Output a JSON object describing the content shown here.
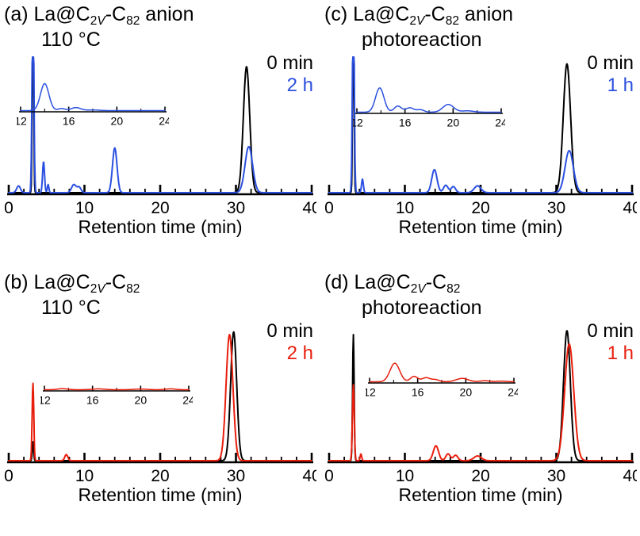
{
  "figure": {
    "xlabel": "Retention time (min)",
    "background": "#ffffff",
    "colors": {
      "black": "#000000",
      "blue": "#2b50e0",
      "red": "#e81e0c"
    }
  },
  "chart_data": [
    {
      "type": "line",
      "panel": "a",
      "title_segments": [
        {
          "t": "(a) "
        },
        {
          "t": "La@C"
        },
        {
          "t": "2",
          "sub": true
        },
        {
          "t": "V",
          "sub": true,
          "ital": true
        },
        {
          "t": "-C"
        },
        {
          "t": "82",
          "sub": true
        },
        {
          "t": " anion"
        }
      ],
      "subtitle": "110 °C",
      "xlabel": "Retention time (min)",
      "xlim": [
        0,
        40
      ],
      "x_major_ticks": [
        0,
        10,
        20,
        30,
        40
      ],
      "x_minor_step": 2,
      "legend": [
        {
          "label": "0 min",
          "color": "#000000"
        },
        {
          "label": "2 h",
          "color": "#2b50e0"
        }
      ],
      "series": [
        {
          "name": "0 min",
          "color": "#000000",
          "peaks": [
            {
              "center": 3.2,
              "width": 0.09,
              "height": 1.5
            },
            {
              "center": 31.4,
              "width": 0.42,
              "height": 0.93
            }
          ]
        },
        {
          "name": "2 h",
          "color": "#2b50e0",
          "peaks": [
            {
              "center": 1.3,
              "width": 0.25,
              "height": 0.05
            },
            {
              "center": 3.2,
              "width": 0.12,
              "height": 1.5
            },
            {
              "center": 4.6,
              "width": 0.13,
              "height": 0.23
            },
            {
              "center": 5.2,
              "width": 0.1,
              "height": 0.06
            },
            {
              "center": 8.6,
              "width": 0.3,
              "height": 0.06
            },
            {
              "center": 9.3,
              "width": 0.25,
              "height": 0.04
            },
            {
              "center": 14.0,
              "width": 0.3,
              "height": 0.33
            },
            {
              "center": 31.7,
              "width": 0.5,
              "height": 0.34
            }
          ]
        }
      ],
      "inset": {
        "xlim": [
          12,
          24
        ],
        "x_major_ticks": [
          12,
          16,
          20,
          24
        ],
        "x_minor_step": 2,
        "series": [
          {
            "name": "2 h",
            "color": "#2b50e0",
            "peaks": [
              {
                "center": 14.0,
                "width": 0.35,
                "height": 0.8
              },
              {
                "center": 15.4,
                "width": 0.3,
                "height": 0.06
              },
              {
                "center": 16.6,
                "width": 0.4,
                "height": 0.09
              },
              {
                "center": 18.0,
                "width": 0.5,
                "height": 0.02
              }
            ]
          }
        ]
      }
    },
    {
      "type": "line",
      "panel": "b",
      "title_segments": [
        {
          "t": "(b) "
        },
        {
          "t": "La@C"
        },
        {
          "t": "2",
          "sub": true
        },
        {
          "t": "V",
          "sub": true,
          "ital": true
        },
        {
          "t": "-C"
        },
        {
          "t": "82",
          "sub": true
        }
      ],
      "subtitle": "110 °C",
      "xlabel": "Retention time (min)",
      "xlim": [
        0,
        40
      ],
      "x_major_ticks": [
        0,
        10,
        20,
        30,
        40
      ],
      "x_minor_step": 2,
      "legend": [
        {
          "label": "0 min",
          "color": "#000000"
        },
        {
          "label": "2 h",
          "color": "#e81e0c"
        }
      ],
      "series": [
        {
          "name": "0 min",
          "color": "#000000",
          "peaks": [
            {
              "center": 3.2,
              "width": 0.09,
              "height": 0.14
            },
            {
              "center": 29.7,
              "width": 0.4,
              "height": 0.95
            }
          ]
        },
        {
          "name": "2 h",
          "color": "#e81e0c",
          "peaks": [
            {
              "center": 3.2,
              "width": 0.11,
              "height": 0.57
            },
            {
              "center": 7.6,
              "width": 0.2,
              "height": 0.045
            },
            {
              "center": 29.15,
              "width": 0.45,
              "height": 0.93
            }
          ]
        }
      ],
      "inset": {
        "xlim": [
          12,
          24
        ],
        "x_major_ticks": [
          12,
          16,
          20,
          24
        ],
        "x_minor_step": 2,
        "series": [
          {
            "name": "2 h",
            "color": "#e81e0c",
            "peaks": [
              {
                "center": 13.5,
                "width": 0.4,
                "height": 0.03
              },
              {
                "center": 16.5,
                "width": 0.5,
                "height": 0.025
              },
              {
                "center": 20.0,
                "width": 0.5,
                "height": 0.02
              },
              {
                "center": 22.5,
                "width": 0.4,
                "height": 0.025
              }
            ]
          }
        ]
      }
    },
    {
      "type": "line",
      "panel": "c",
      "title_segments": [
        {
          "t": "(c) "
        },
        {
          "t": "La@C"
        },
        {
          "t": "2",
          "sub": true
        },
        {
          "t": "V",
          "sub": true,
          "ital": true
        },
        {
          "t": "-C"
        },
        {
          "t": "82",
          "sub": true
        },
        {
          "t": " anion"
        }
      ],
      "subtitle": "photoreaction",
      "xlabel": "Retention time (min)",
      "xlim": [
        0,
        40
      ],
      "x_major_ticks": [
        0,
        10,
        20,
        30,
        40
      ],
      "x_minor_step": 2,
      "legend": [
        {
          "label": "0 min",
          "color": "#000000"
        },
        {
          "label": "1 h",
          "color": "#2b50e0"
        }
      ],
      "series": [
        {
          "name": "0 min",
          "color": "#000000",
          "peaks": [
            {
              "center": 3.2,
              "width": 0.09,
              "height": 1.5
            },
            {
              "center": 31.4,
              "width": 0.48,
              "height": 0.95
            }
          ]
        },
        {
          "name": "1 h",
          "color": "#2b50e0",
          "peaks": [
            {
              "center": 3.2,
              "width": 0.12,
              "height": 1.5
            },
            {
              "center": 4.4,
              "width": 0.12,
              "height": 0.1
            },
            {
              "center": 13.9,
              "width": 0.35,
              "height": 0.17
            },
            {
              "center": 15.4,
              "width": 0.3,
              "height": 0.055
            },
            {
              "center": 16.4,
              "width": 0.3,
              "height": 0.045
            },
            {
              "center": 19.6,
              "width": 0.45,
              "height": 0.05
            },
            {
              "center": 31.7,
              "width": 0.55,
              "height": 0.31
            }
          ]
        }
      ],
      "inset": {
        "xlim": [
          12,
          24
        ],
        "x_major_ticks": [
          12,
          16,
          20,
          24
        ],
        "x_minor_step": 2,
        "series": [
          {
            "name": "1 h",
            "color": "#2b50e0",
            "peaks": [
              {
                "center": 13.9,
                "width": 0.35,
                "height": 0.72
              },
              {
                "center": 15.4,
                "width": 0.3,
                "height": 0.18
              },
              {
                "center": 16.4,
                "width": 0.35,
                "height": 0.13
              },
              {
                "center": 17.3,
                "width": 0.3,
                "height": 0.07
              },
              {
                "center": 19.6,
                "width": 0.45,
                "height": 0.23
              },
              {
                "center": 21.2,
                "width": 0.5,
                "height": 0.04
              }
            ]
          }
        ]
      }
    },
    {
      "type": "line",
      "panel": "d",
      "title_segments": [
        {
          "t": "(d) "
        },
        {
          "t": "La@C"
        },
        {
          "t": "2",
          "sub": true
        },
        {
          "t": "V",
          "sub": true,
          "ital": true
        },
        {
          "t": "-C"
        },
        {
          "t": "82",
          "sub": true
        }
      ],
      "subtitle": "photoreaction",
      "xlabel": "Retention time (min)",
      "xlim": [
        0,
        40
      ],
      "x_major_ticks": [
        0,
        10,
        20,
        30,
        40
      ],
      "x_minor_step": 2,
      "legend": [
        {
          "label": "0 min",
          "color": "#000000"
        },
        {
          "label": "1 h",
          "color": "#e81e0c"
        }
      ],
      "series": [
        {
          "name": "0 min",
          "color": "#000000",
          "peaks": [
            {
              "center": 3.2,
              "width": 0.1,
              "height": 0.93
            },
            {
              "center": 31.4,
              "width": 0.45,
              "height": 0.96
            }
          ]
        },
        {
          "name": "1 h",
          "color": "#e81e0c",
          "peaks": [
            {
              "center": 3.2,
              "width": 0.12,
              "height": 0.56
            },
            {
              "center": 4.2,
              "width": 0.1,
              "height": 0.05
            },
            {
              "center": 14.1,
              "width": 0.35,
              "height": 0.11
            },
            {
              "center": 15.7,
              "width": 0.3,
              "height": 0.05
            },
            {
              "center": 16.7,
              "width": 0.3,
              "height": 0.04
            },
            {
              "center": 19.6,
              "width": 0.5,
              "height": 0.035
            },
            {
              "center": 31.7,
              "width": 0.6,
              "height": 0.86
            }
          ]
        }
      ],
      "inset": {
        "xlim": [
          12,
          24
        ],
        "x_major_ticks": [
          12,
          16,
          20,
          24
        ],
        "x_minor_step": 2,
        "series": [
          {
            "name": "1 h",
            "color": "#e81e0c",
            "peaks": [
              {
                "center": 14.1,
                "width": 0.4,
                "height": 0.55
              },
              {
                "center": 15.7,
                "width": 0.3,
                "height": 0.16
              },
              {
                "center": 16.7,
                "width": 0.35,
                "height": 0.12
              },
              {
                "center": 17.5,
                "width": 0.3,
                "height": 0.06
              },
              {
                "center": 19.7,
                "width": 0.5,
                "height": 0.1
              },
              {
                "center": 21.6,
                "width": 0.4,
                "height": 0.03
              },
              {
                "center": 23.0,
                "width": 0.4,
                "height": 0.02
              }
            ]
          }
        ]
      }
    }
  ]
}
